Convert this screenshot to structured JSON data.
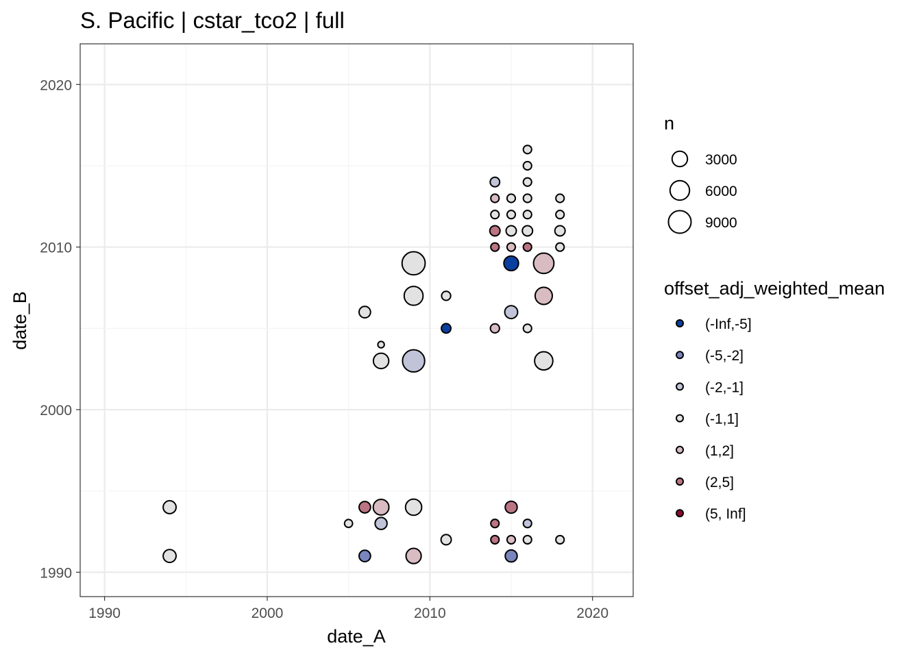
{
  "chart_data": {
    "type": "scatter",
    "title": "S. Pacific | cstar_tco2 | full",
    "xlabel": "date_A",
    "ylabel": "date_B",
    "xlim": [
      1988.5,
      2022.5
    ],
    "ylim": [
      1988.5,
      2022.5
    ],
    "xticks": [
      1990,
      2000,
      2010,
      2020
    ],
    "yticks": [
      1990,
      2000,
      2010,
      2020
    ],
    "grid": true,
    "size_legend": {
      "title": "n",
      "entries": [
        3000,
        6000,
        9000
      ]
    },
    "color_legend": {
      "title": "offset_adj_weighted_mean",
      "entries": [
        {
          "label": "(-Inf,-5]",
          "color": "#0a3fa0"
        },
        {
          "label": "(-5,-2]",
          "color": "#7985bd"
        },
        {
          "label": "(-2,-1]",
          "color": "#c1c4d8"
        },
        {
          "label": "(-1,1]",
          "color": "#e2e2e2"
        },
        {
          "label": "(1,2]",
          "color": "#d9bcc2"
        },
        {
          "label": "(2,5]",
          "color": "#bb7482"
        },
        {
          "label": "(5, Inf]",
          "color": "#8b0a30"
        }
      ]
    },
    "points": [
      {
        "x": 1994,
        "y": 1994,
        "n": 1700,
        "c": 3
      },
      {
        "x": 1994,
        "y": 1991,
        "n": 1700,
        "c": 3
      },
      {
        "x": 2005,
        "y": 1993,
        "n": 200,
        "c": 3
      },
      {
        "x": 2006,
        "y": 1994,
        "n": 1100,
        "c": 5
      },
      {
        "x": 2006,
        "y": 1991,
        "n": 1100,
        "c": 1
      },
      {
        "x": 2007,
        "y": 1994,
        "n": 3200,
        "c": 4
      },
      {
        "x": 2007,
        "y": 1993,
        "n": 1300,
        "c": 2
      },
      {
        "x": 2009,
        "y": 1994,
        "n": 3500,
        "c": 3
      },
      {
        "x": 2009,
        "y": 1991,
        "n": 2900,
        "c": 4
      },
      {
        "x": 2011,
        "y": 1992,
        "n": 700,
        "c": 3
      },
      {
        "x": 2014,
        "y": 1993,
        "n": 250,
        "c": 5
      },
      {
        "x": 2014,
        "y": 1992,
        "n": 250,
        "c": 5
      },
      {
        "x": 2015,
        "y": 1994,
        "n": 1300,
        "c": 5
      },
      {
        "x": 2015,
        "y": 1992,
        "n": 250,
        "c": 4
      },
      {
        "x": 2015,
        "y": 1991,
        "n": 1300,
        "c": 1
      },
      {
        "x": 2016,
        "y": 1993,
        "n": 250,
        "c": 2
      },
      {
        "x": 2016,
        "y": 1992,
        "n": 250,
        "c": 3
      },
      {
        "x": 2018,
        "y": 1992,
        "n": 250,
        "c": 3
      },
      {
        "x": 2006,
        "y": 2006,
        "n": 1100,
        "c": 3
      },
      {
        "x": 2007,
        "y": 2004,
        "n": 30,
        "c": 3
      },
      {
        "x": 2007,
        "y": 2003,
        "n": 3000,
        "c": 3
      },
      {
        "x": 2009,
        "y": 2009,
        "n": 9500,
        "c": 3
      },
      {
        "x": 2009,
        "y": 2007,
        "n": 5500,
        "c": 3
      },
      {
        "x": 2009,
        "y": 2003,
        "n": 8500,
        "c": 2
      },
      {
        "x": 2011,
        "y": 2007,
        "n": 400,
        "c": 3
      },
      {
        "x": 2011,
        "y": 2005,
        "n": 500,
        "c": 0
      },
      {
        "x": 2014,
        "y": 2005,
        "n": 400,
        "c": 4
      },
      {
        "x": 2014,
        "y": 2014,
        "n": 500,
        "c": 2
      },
      {
        "x": 2014,
        "y": 2013,
        "n": 250,
        "c": 4
      },
      {
        "x": 2014,
        "y": 2012,
        "n": 250,
        "c": 3
      },
      {
        "x": 2014,
        "y": 2011,
        "n": 700,
        "c": 5
      },
      {
        "x": 2014,
        "y": 2010,
        "n": 250,
        "c": 5
      },
      {
        "x": 2015,
        "y": 2013,
        "n": 250,
        "c": 3
      },
      {
        "x": 2015,
        "y": 2012,
        "n": 250,
        "c": 3
      },
      {
        "x": 2015,
        "y": 2011,
        "n": 700,
        "c": 3
      },
      {
        "x": 2015,
        "y": 2010,
        "n": 250,
        "c": 4
      },
      {
        "x": 2015,
        "y": 2009,
        "n": 2600,
        "c": 0
      },
      {
        "x": 2015,
        "y": 2006,
        "n": 1700,
        "c": 2
      },
      {
        "x": 2016,
        "y": 2016,
        "n": 250,
        "c": 3
      },
      {
        "x": 2016,
        "y": 2015,
        "n": 250,
        "c": 3
      },
      {
        "x": 2016,
        "y": 2014,
        "n": 250,
        "c": 3
      },
      {
        "x": 2016,
        "y": 2013,
        "n": 250,
        "c": 3
      },
      {
        "x": 2016,
        "y": 2012,
        "n": 250,
        "c": 3
      },
      {
        "x": 2016,
        "y": 2011,
        "n": 700,
        "c": 3
      },
      {
        "x": 2016,
        "y": 2010,
        "n": 250,
        "c": 5
      },
      {
        "x": 2016,
        "y": 2005,
        "n": 250,
        "c": 3
      },
      {
        "x": 2017,
        "y": 2009,
        "n": 6800,
        "c": 4
      },
      {
        "x": 2017,
        "y": 2007,
        "n": 4200,
        "c": 4
      },
      {
        "x": 2017,
        "y": 2003,
        "n": 5000,
        "c": 3
      },
      {
        "x": 2018,
        "y": 2013,
        "n": 250,
        "c": 3
      },
      {
        "x": 2018,
        "y": 2012,
        "n": 250,
        "c": 3
      },
      {
        "x": 2018,
        "y": 2011,
        "n": 700,
        "c": 3
      },
      {
        "x": 2018,
        "y": 2010,
        "n": 250,
        "c": 3
      }
    ]
  }
}
